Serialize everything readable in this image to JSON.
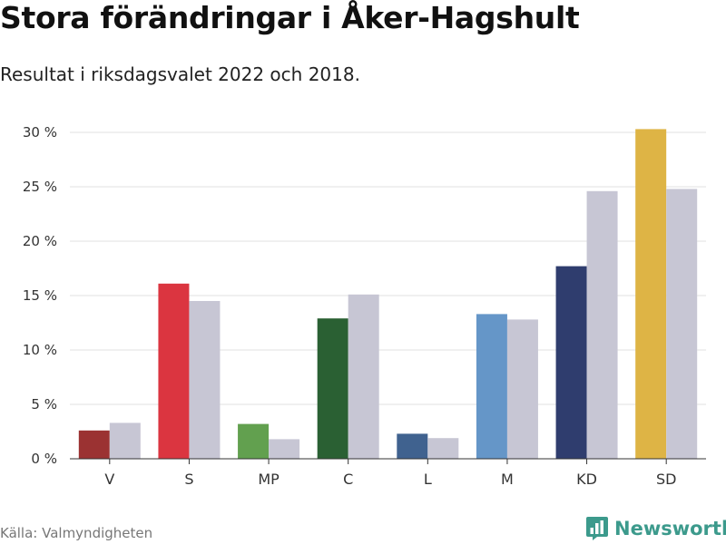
{
  "header": {
    "title": "Stora förändringar i Åker-Hagshult",
    "subtitle": "Resultat i riksdagsvalet 2022 och 2018."
  },
  "footer": {
    "source": "Källa: Valmyndigheten",
    "brand": "Newsworthy"
  },
  "colors": {
    "brand": "#3c9a8c",
    "series_2018": "#c7c6d4",
    "grid": "#e2e2e2",
    "axis": "#333333"
  },
  "icons": {
    "brand_logo": "bar-chart-icon"
  },
  "chart_data": {
    "type": "bar",
    "categories": [
      "V",
      "S",
      "MP",
      "C",
      "L",
      "M",
      "KD",
      "SD"
    ],
    "series": [
      {
        "name": "2022",
        "values": [
          2.6,
          16.1,
          3.2,
          12.9,
          2.3,
          13.3,
          17.7,
          30.3
        ],
        "colors": [
          "#9b3232",
          "#db3540",
          "#62a04f",
          "#2a6033",
          "#40628f",
          "#6596c8",
          "#2f3d6e",
          "#deb445"
        ]
      },
      {
        "name": "2018",
        "values": [
          3.3,
          14.5,
          1.8,
          15.1,
          1.9,
          12.8,
          24.6,
          24.8
        ],
        "colors": [
          "#c7c6d4",
          "#c7c6d4",
          "#c7c6d4",
          "#c7c6d4",
          "#c7c6d4",
          "#c7c6d4",
          "#c7c6d4",
          "#c7c6d4"
        ]
      }
    ],
    "ylim": [
      0,
      30
    ],
    "yticks": [
      0,
      5,
      10,
      15,
      20,
      25,
      30
    ],
    "ytick_labels": [
      "0 %",
      "5 %",
      "10 %",
      "15 %",
      "20 %",
      "25 %",
      "30 %"
    ],
    "xlabel": "",
    "ylabel": "",
    "grid": true,
    "legend": false
  }
}
